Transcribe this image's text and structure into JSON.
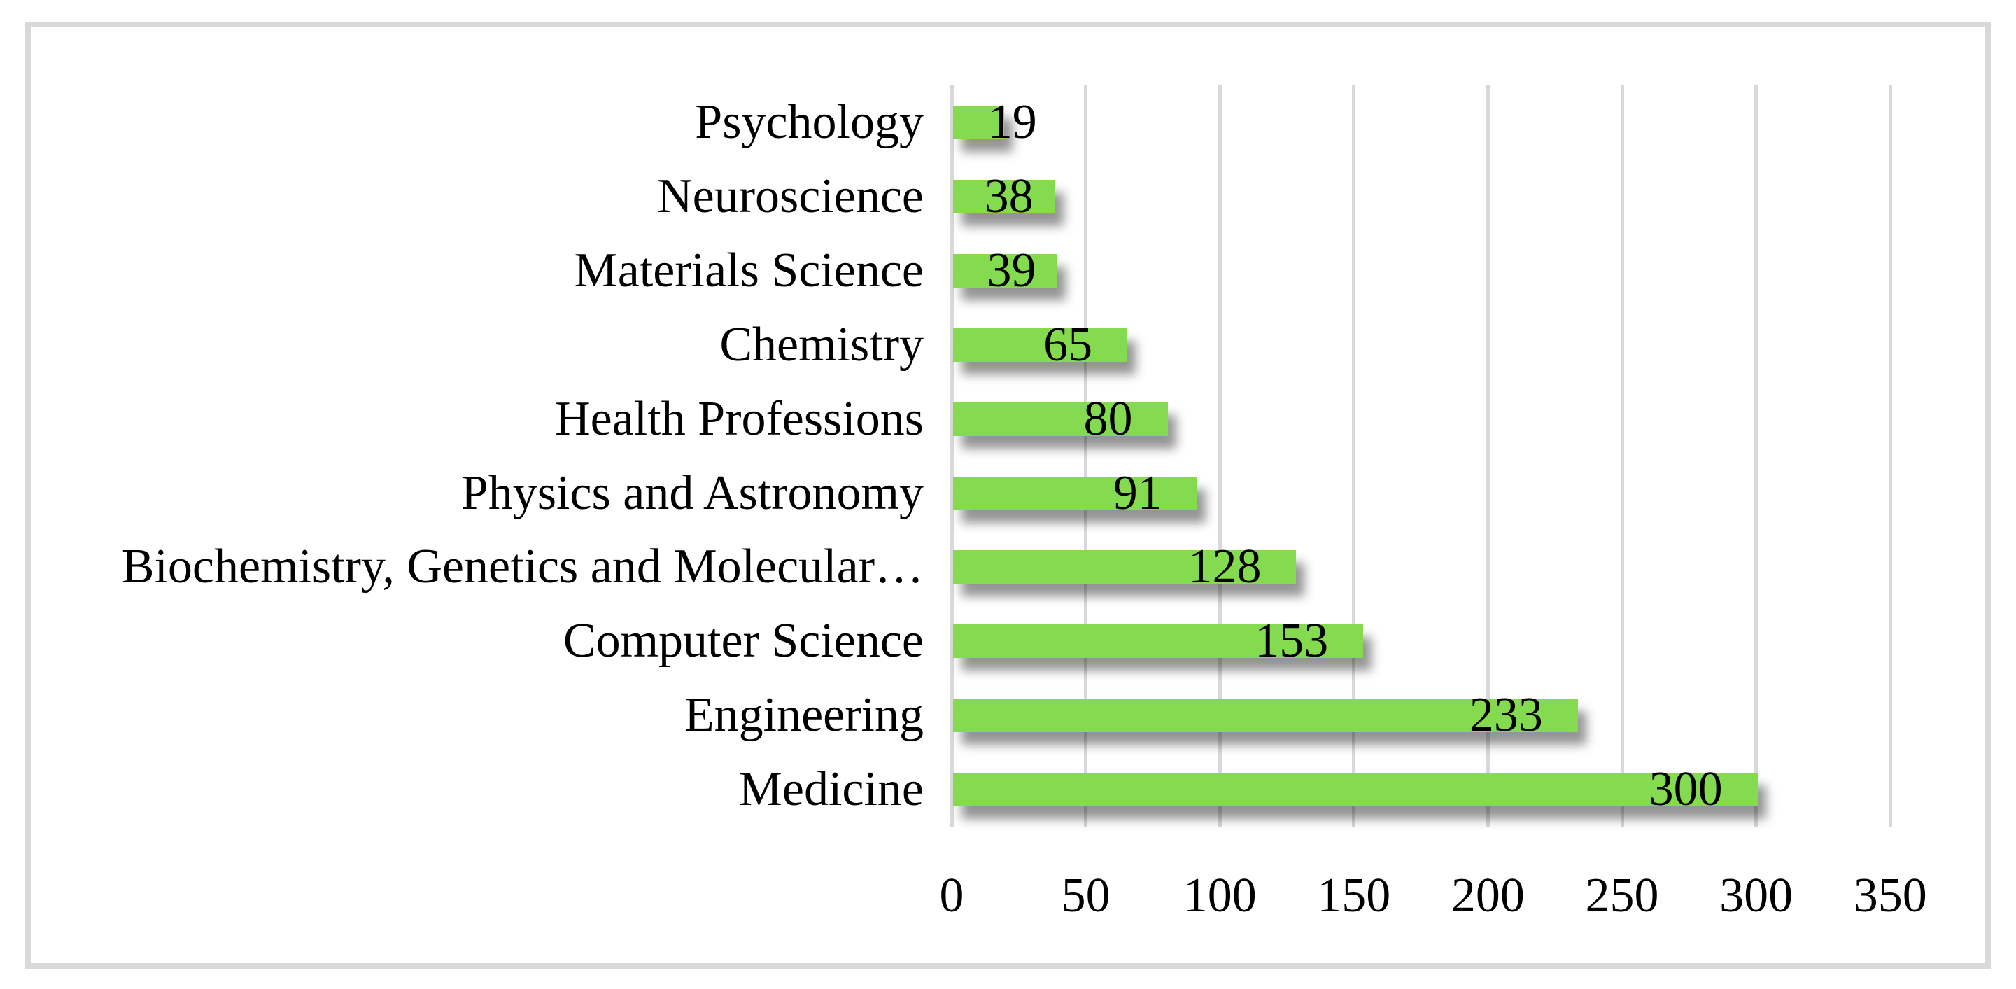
{
  "chart_data": {
    "type": "bar",
    "orientation": "horizontal",
    "title": "",
    "categories": [
      "Psychology",
      "Neuroscience",
      "Materials Science",
      "Chemistry",
      "Health Professions",
      "Physics and Astronomy",
      "Biochemistry, Genetics and Molecular…",
      "Computer Science",
      "Engineering",
      "Medicine"
    ],
    "values": [
      19,
      38,
      39,
      65,
      80,
      91,
      128,
      153,
      233,
      300
    ],
    "data_labels": [
      "19",
      "38",
      "39",
      "65",
      "80",
      "91",
      "128",
      "153",
      "233",
      "300"
    ],
    "xlabel": "",
    "ylabel": "",
    "xlim": [
      0,
      350
    ],
    "x_ticks": [
      0,
      50,
      100,
      150,
      200,
      250,
      300,
      350
    ],
    "grid": "vertical gridlines every 50, light gray",
    "legend": "none",
    "data_label_position": "inside end",
    "bar_color": "#85DB4F",
    "bar_shadow": "soft dark drop shadow offset bottom-right",
    "gridline_color": "#D9D9D9",
    "frame_border_color": "#D9D9D9",
    "text_color": "#000000",
    "background_color": "#FFFFFF"
  }
}
